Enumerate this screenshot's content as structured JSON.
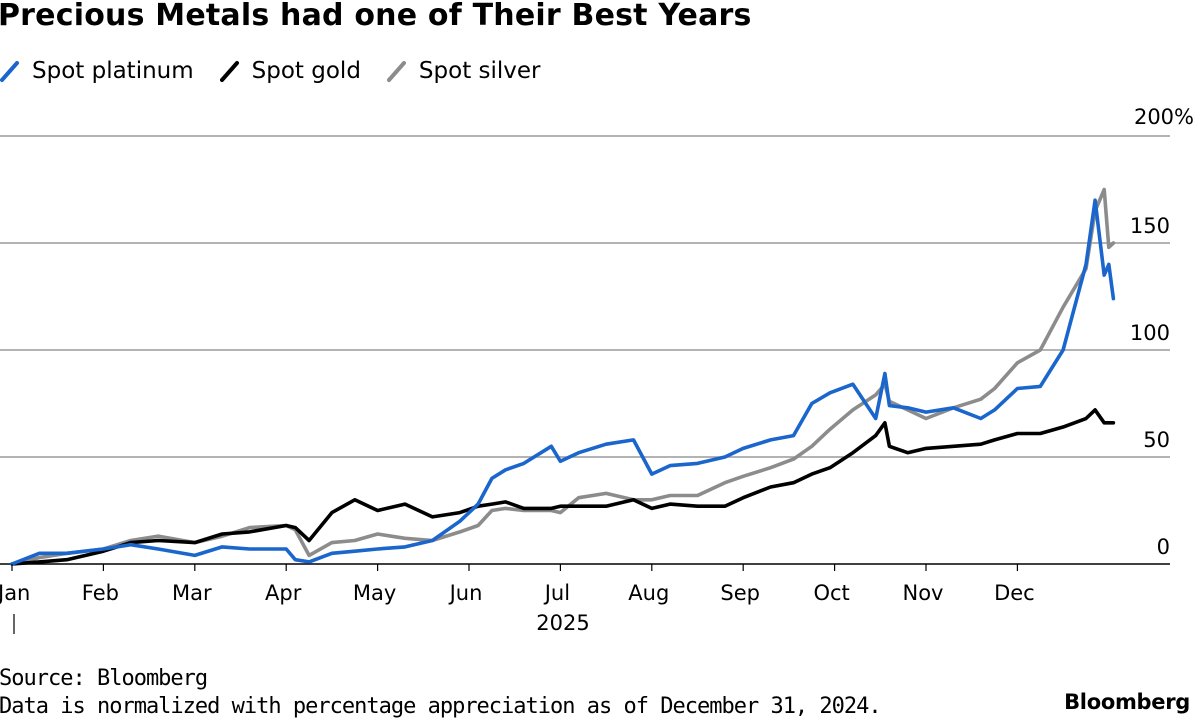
{
  "chart_data": {
    "type": "line",
    "title": "Precious Metals had one of Their Best Years",
    "xlabel": "2025",
    "ylabel": "",
    "ylim": [
      0,
      200
    ],
    "y_ticks": [
      0,
      50,
      100,
      150,
      200
    ],
    "y_tick_labels": [
      "0",
      "50",
      "100",
      "150",
      "200%"
    ],
    "x_tick_labels": [
      "Jan",
      "Feb",
      "Mar",
      "Apr",
      "May",
      "Jun",
      "Jul",
      "Aug",
      "Sep",
      "Oct",
      "Nov",
      "Dec"
    ],
    "x_range": [
      0,
      12.35
    ],
    "legend_position": "top-left",
    "series": [
      {
        "name": "Spot platinum",
        "color": "#1a66cc",
        "x": [
          0,
          0.3,
          0.6,
          1.0,
          1.3,
          1.6,
          2.0,
          2.3,
          2.6,
          3.0,
          3.1,
          3.25,
          3.5,
          3.75,
          4.0,
          4.3,
          4.6,
          4.9,
          5.1,
          5.25,
          5.4,
          5.6,
          5.9,
          6.0,
          6.2,
          6.5,
          6.8,
          7.0,
          7.2,
          7.5,
          7.8,
          8.0,
          8.3,
          8.55,
          8.75,
          8.95,
          9.2,
          9.45,
          9.55,
          9.6,
          9.8,
          10.0,
          10.3,
          10.6,
          10.75,
          11.0,
          11.25,
          11.5,
          11.75,
          11.85,
          11.95,
          12.0,
          12.05
        ],
        "y": [
          0,
          5,
          5,
          7,
          9,
          7,
          4,
          8,
          7,
          7,
          2,
          1,
          5,
          6,
          7,
          8,
          11,
          20,
          28,
          40,
          44,
          47,
          55,
          48,
          52,
          56,
          58,
          42,
          46,
          47,
          50,
          54,
          58,
          60,
          75,
          80,
          84,
          68,
          89,
          74,
          73,
          71,
          73,
          68,
          72,
          82,
          83,
          100,
          140,
          170,
          135,
          140,
          124
        ]
      },
      {
        "name": "Spot gold",
        "color": "#000000",
        "x": [
          0,
          0.3,
          0.6,
          1.0,
          1.3,
          1.6,
          2.0,
          2.3,
          2.6,
          3.0,
          3.1,
          3.25,
          3.5,
          3.75,
          4.0,
          4.3,
          4.6,
          4.9,
          5.1,
          5.25,
          5.4,
          5.6,
          5.9,
          6.0,
          6.2,
          6.5,
          6.8,
          7.0,
          7.2,
          7.5,
          7.8,
          8.0,
          8.3,
          8.55,
          8.75,
          8.95,
          9.2,
          9.45,
          9.55,
          9.6,
          9.8,
          10.0,
          10.3,
          10.6,
          10.75,
          11.0,
          11.25,
          11.5,
          11.75,
          11.85,
          11.95,
          12.0,
          12.05
        ],
        "y": [
          0,
          1,
          2,
          6,
          10,
          11,
          10,
          14,
          15,
          18,
          17,
          11,
          24,
          30,
          25,
          28,
          22,
          24,
          27,
          28,
          29,
          26,
          26,
          27,
          27,
          27,
          30,
          26,
          28,
          27,
          27,
          31,
          36,
          38,
          42,
          45,
          52,
          60,
          66,
          55,
          52,
          54,
          55,
          56,
          58,
          61,
          61,
          64,
          68,
          72,
          66,
          66,
          66
        ]
      },
      {
        "name": "Spot silver",
        "color": "#8c8c8c",
        "x": [
          0,
          0.3,
          0.6,
          1.0,
          1.3,
          1.6,
          2.0,
          2.3,
          2.6,
          3.0,
          3.1,
          3.25,
          3.5,
          3.75,
          4.0,
          4.3,
          4.6,
          4.9,
          5.1,
          5.25,
          5.4,
          5.6,
          5.9,
          6.0,
          6.2,
          6.5,
          6.8,
          7.0,
          7.2,
          7.5,
          7.8,
          8.0,
          8.3,
          8.55,
          8.75,
          8.95,
          9.2,
          9.45,
          9.55,
          9.6,
          9.8,
          10.0,
          10.3,
          10.6,
          10.75,
          11.0,
          11.25,
          11.5,
          11.75,
          11.85,
          11.95,
          12.0,
          12.05
        ],
        "y": [
          0,
          3,
          5,
          7,
          11,
          13,
          10,
          13,
          17,
          18,
          16,
          4,
          10,
          11,
          14,
          12,
          11,
          15,
          18,
          25,
          26,
          25,
          25,
          24,
          31,
          33,
          30,
          30,
          32,
          32,
          38,
          41,
          45,
          49,
          55,
          63,
          72,
          79,
          84,
          76,
          72,
          68,
          73,
          77,
          82,
          94,
          100,
          120,
          138,
          165,
          175,
          148,
          150
        ]
      }
    ]
  },
  "header": {
    "title": "Precious Metals had one of Their Best Years"
  },
  "footer": {
    "source": "Source: Bloomberg",
    "note": "Data is normalized with percentage appreciation as of December 31, 2024.",
    "brand": "Bloomberg"
  }
}
